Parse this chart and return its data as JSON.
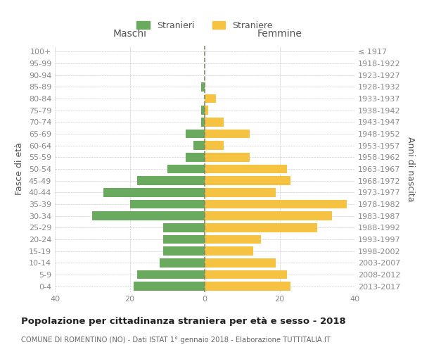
{
  "age_groups": [
    "0-4",
    "5-9",
    "10-14",
    "15-19",
    "20-24",
    "25-29",
    "30-34",
    "35-39",
    "40-44",
    "45-49",
    "50-54",
    "55-59",
    "60-64",
    "65-69",
    "70-74",
    "75-79",
    "80-84",
    "85-89",
    "90-94",
    "95-99",
    "100+"
  ],
  "birth_years": [
    "2013-2017",
    "2008-2012",
    "2003-2007",
    "1998-2002",
    "1993-1997",
    "1988-1992",
    "1983-1987",
    "1978-1982",
    "1973-1977",
    "1968-1972",
    "1963-1967",
    "1958-1962",
    "1953-1957",
    "1948-1952",
    "1943-1947",
    "1938-1942",
    "1933-1937",
    "1928-1932",
    "1923-1927",
    "1918-1922",
    "≤ 1917"
  ],
  "maschi": [
    19,
    18,
    12,
    11,
    11,
    11,
    30,
    20,
    27,
    18,
    10,
    5,
    3,
    5,
    1,
    1,
    0,
    1,
    0,
    0,
    0
  ],
  "femmine": [
    23,
    22,
    19,
    13,
    15,
    30,
    34,
    38,
    19,
    23,
    22,
    12,
    5,
    12,
    5,
    1,
    3,
    0,
    0,
    0,
    0
  ],
  "maschi_color": "#6aaa5e",
  "femmine_color": "#f5c242",
  "background_color": "#ffffff",
  "grid_color": "#cccccc",
  "title": "Popolazione per cittadinanza straniera per età e sesso - 2018",
  "subtitle": "COMUNE DI ROMENTINO (NO) - Dati ISTAT 1° gennaio 2018 - Elaborazione TUTTITALIA.IT",
  "ylabel_left": "Fasce di età",
  "ylabel_right": "Anni di nascita",
  "legend_maschi": "Stranieri",
  "legend_femmine": "Straniere",
  "xlim": 40,
  "xlabel_left": "Maschi",
  "xlabel_right": "Femmine"
}
